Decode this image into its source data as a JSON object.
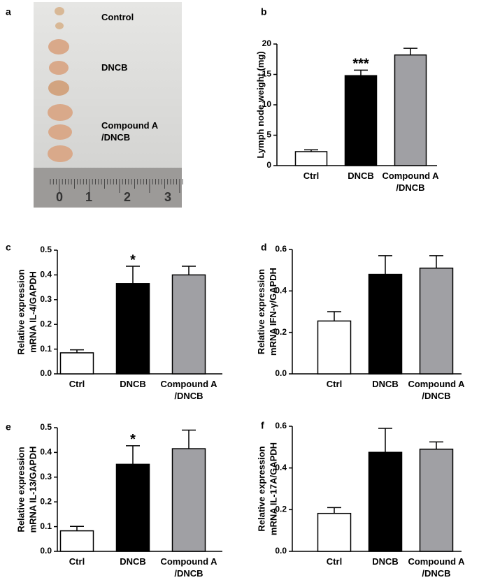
{
  "photo": {
    "panel": "a",
    "labels": [
      "Control",
      "DNCB",
      "Compound A\n/DNCB"
    ],
    "ruler_labels": [
      "0",
      "1",
      "2",
      "3"
    ]
  },
  "chart_data": [
    {
      "type": "bar",
      "panel": "b",
      "y_label": "Lymph node weight (mg)",
      "categories": [
        "Ctrl",
        "DNCB",
        "Compound A\n/DNCB"
      ],
      "values": [
        2.3,
        14.8,
        18.2
      ],
      "errors": [
        0.3,
        0.9,
        1.1
      ],
      "colors": [
        "#ffffff",
        "#000000",
        "#a0a0a4"
      ],
      "annotations": [
        null,
        "***",
        null
      ],
      "ylim": [
        0,
        20
      ],
      "yticks": [
        0,
        5,
        10,
        15,
        20
      ]
    },
    {
      "type": "bar",
      "panel": "c",
      "y_label": "Relative expression\nmRNA IL-4/GAPDH",
      "categories": [
        "Ctrl",
        "DNCB",
        "Compound A\n/DNCB"
      ],
      "values": [
        0.085,
        0.365,
        0.4
      ],
      "errors": [
        0.012,
        0.07,
        0.035
      ],
      "colors": [
        "#ffffff",
        "#000000",
        "#a0a0a4"
      ],
      "annotations": [
        null,
        "*",
        null
      ],
      "ylim": [
        0,
        0.5
      ],
      "yticks": [
        {
          "value": 0,
          "label": "0.0"
        },
        0.1,
        0.2,
        0.3,
        0.4,
        0.5
      ]
    },
    {
      "type": "bar",
      "panel": "d",
      "y_label": "Relative expression\nmRNA IFN-γ/GAPDH",
      "categories": [
        "Ctrl",
        "DNCB",
        "Compound A\n/DNCB"
      ],
      "values": [
        0.255,
        0.48,
        0.51
      ],
      "errors": [
        0.045,
        0.09,
        0.06
      ],
      "colors": [
        "#ffffff",
        "#000000",
        "#a0a0a4"
      ],
      "ylim": [
        0,
        0.6
      ],
      "yticks": [
        {
          "value": 0,
          "label": "0.0"
        },
        0.2,
        0.4,
        0.6
      ]
    },
    {
      "type": "bar",
      "panel": "e",
      "y_label": "Relative expression\nmRNA IL-13/GAPDH",
      "categories": [
        "Ctrl",
        "DNCB",
        "Compound A\n/DNCB"
      ],
      "values": [
        0.083,
        0.352,
        0.415
      ],
      "errors": [
        0.018,
        0.075,
        0.075
      ],
      "colors": [
        "#ffffff",
        "#000000",
        "#a0a0a4"
      ],
      "annotations": [
        null,
        "*",
        null
      ],
      "ylim": [
        0,
        0.5
      ],
      "yticks": [
        {
          "value": 0,
          "label": "0.0"
        },
        0.1,
        0.2,
        0.3,
        0.4,
        0.5
      ]
    },
    {
      "type": "bar",
      "panel": "f",
      "y_label": "Relative expression\nmRNA IL-17A/GAPDH",
      "categories": [
        "Ctrl",
        "DNCB",
        "Compound A\n/DNCB"
      ],
      "values": [
        0.182,
        0.475,
        0.49
      ],
      "errors": [
        0.028,
        0.115,
        0.035
      ],
      "colors": [
        "#ffffff",
        "#000000",
        "#a0a0a4"
      ],
      "ylim": [
        0,
        0.6
      ],
      "yticks": [
        {
          "value": 0,
          "label": "0.0"
        },
        0.2,
        0.4,
        0.6
      ]
    }
  ]
}
